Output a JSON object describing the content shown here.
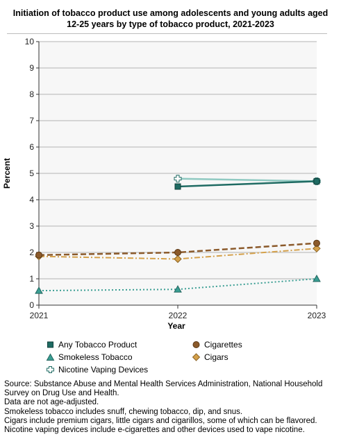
{
  "title": "Initiation of tobacco product use among adolescents and young adults aged 12-25 years by type of tobacco product, 2021-2023",
  "chart_data": {
    "type": "line",
    "title": "Initiation of tobacco product use among adolescents and young adults aged 12-25 years by type of tobacco product, 2021-2023",
    "xlabel": "Year",
    "ylabel": "Percent",
    "x": [
      "2021",
      "2022",
      "2023"
    ],
    "ylim": [
      0,
      10
    ],
    "yticks": [
      "0",
      "1",
      "2",
      "3",
      "4",
      "5",
      "6",
      "7",
      "8",
      "9",
      "10"
    ],
    "grid": true,
    "legend_position": "bottom",
    "series": [
      {
        "name": "Any Tobacco Product",
        "values": [
          null,
          4.5,
          4.7
        ],
        "color": "#1f6b63",
        "marker": "square",
        "line": "solid"
      },
      {
        "name": "Smokeless Tobacco",
        "values": [
          0.55,
          0.6,
          1.0
        ],
        "color": "#3a9e93",
        "marker": "triangle",
        "line": "dotted"
      },
      {
        "name": "Nicotine Vaping Devices",
        "values": [
          null,
          4.8,
          4.7
        ],
        "color": "#8fc9c1",
        "marker": "plus",
        "line": "solid"
      },
      {
        "name": "Cigarettes",
        "values": [
          1.9,
          2.0,
          2.35
        ],
        "color": "#8b5a2b",
        "marker": "circle",
        "line": "dashed"
      },
      {
        "name": "Cigars",
        "values": [
          1.85,
          1.75,
          2.15
        ],
        "color": "#d4a04a",
        "marker": "diamond",
        "line": "dashdot"
      }
    ]
  },
  "legend": {
    "items": [
      {
        "label": "Any Tobacco Product"
      },
      {
        "label": "Cigarettes"
      },
      {
        "label": "Smokeless Tobacco"
      },
      {
        "label": "Cigars"
      },
      {
        "label": "Nicotine Vaping Devices"
      }
    ]
  },
  "notes": [
    "Source: Substance Abuse and Mental Health Services Administration, National Household Survey on Drug Use and Health.",
    "Data are not age-adjusted.",
    "Smokeless tobacco includes snuff, chewing tobacco, dip, and snus.",
    "Cigars include premium cigars, little cigars and cigarillos, some of which can be flavored.",
    "Nicotine vaping devices include e-cigarettes and other devices used to vape nicotine."
  ]
}
